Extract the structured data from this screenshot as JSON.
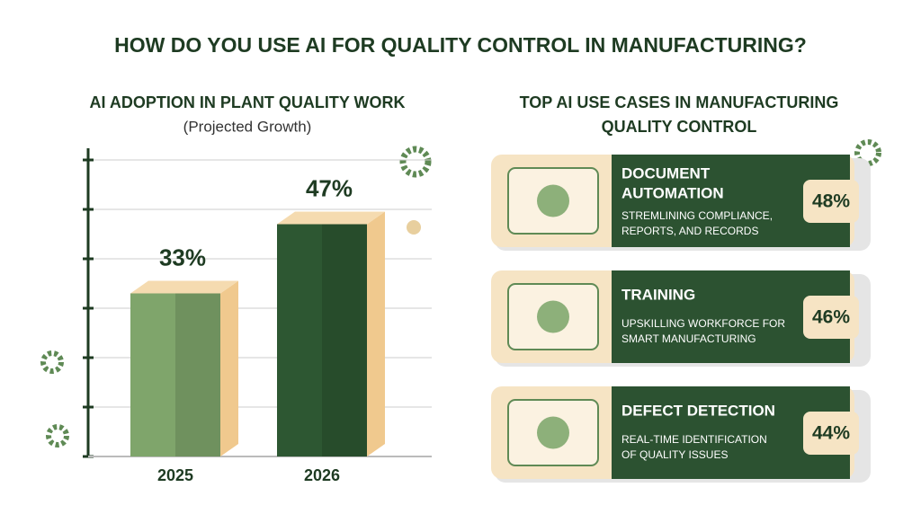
{
  "title": "HOW DO YOU USE AI FOR QUALITY CONTROL IN MANUFACTURING?",
  "chart_data": {
    "type": "bar",
    "title": "AI ADOPTION IN PLANT QUALITY WORK",
    "subtitle": "(Projected Growth)",
    "categories": [
      "2025",
      "2026"
    ],
    "values": [
      33,
      47
    ],
    "value_labels": [
      "33%",
      "47%"
    ],
    "colors": [
      "#7fa56b",
      "#2d5732"
    ],
    "ylim": [
      0,
      60
    ],
    "yticks": [
      0,
      10,
      20,
      30,
      40,
      50,
      60
    ],
    "grid": true
  },
  "use_cases": {
    "title": [
      "TOP AI USE CASES IN MANUFACTURING",
      "QUALITY CONTROL"
    ],
    "items": [
      {
        "title": [
          "DOCUMENT",
          "AUTOMATION"
        ],
        "description": [
          "STREMLINING COMPLIANCE,",
          "REPORTS, AND RECORDS"
        ],
        "value": "48%"
      },
      {
        "title": [
          "TRAINING"
        ],
        "description": [
          "UPSKILLING WORKFORCE FOR",
          "SMART MANUFACTURING"
        ],
        "value": "46%"
      },
      {
        "title": [
          "DEFECT DETECTION"
        ],
        "description": [
          "REAL-TIME IDENTIFICATION",
          "OF QUALITY ISSUES"
        ],
        "value": "44%"
      }
    ]
  }
}
